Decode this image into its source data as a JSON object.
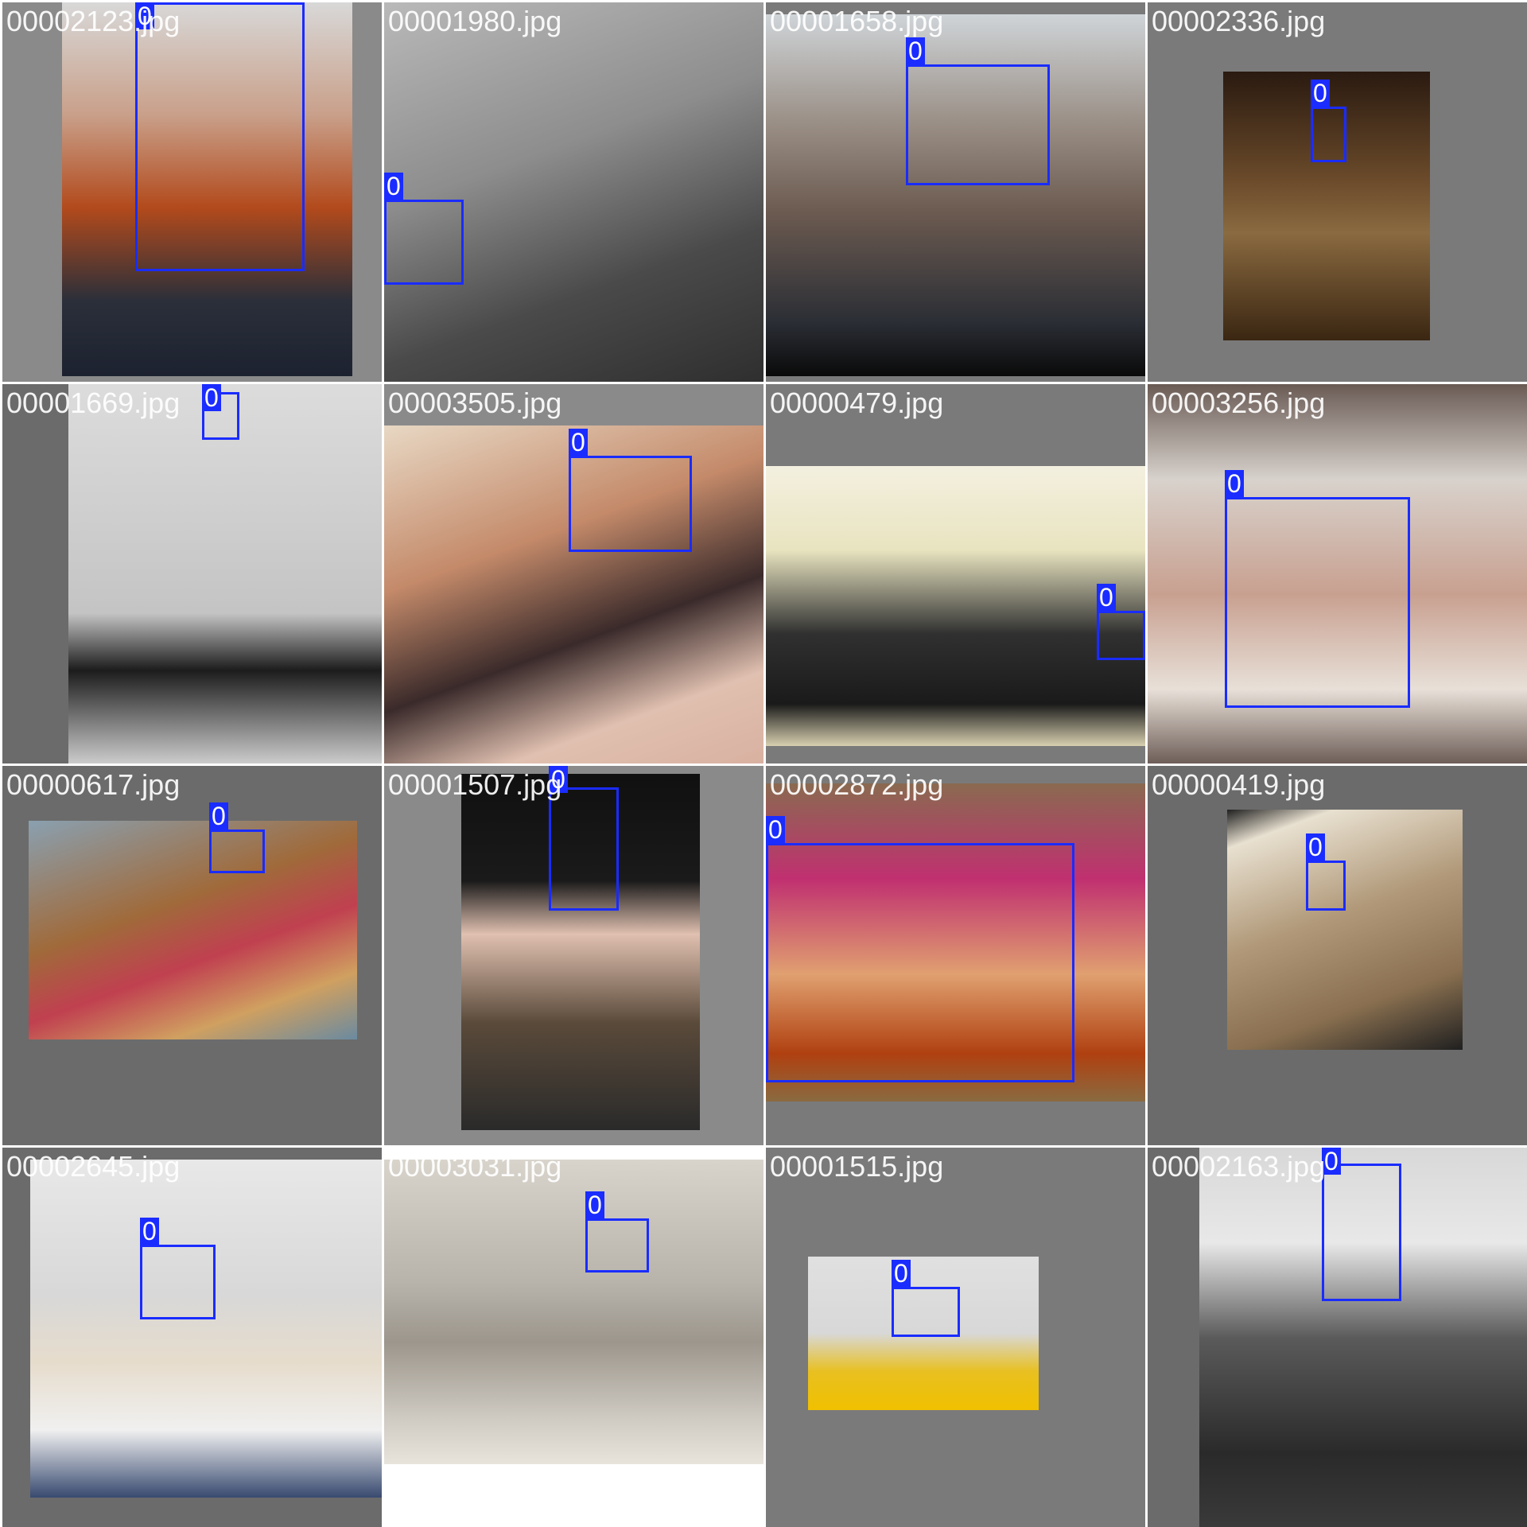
{
  "grid": {
    "tiles": [
      {
        "filename": "00002123.jpg",
        "class_label": "0"
      },
      {
        "filename": "00001980.jpg",
        "class_label": "0"
      },
      {
        "filename": "00001658.jpg",
        "class_label": "0"
      },
      {
        "filename": "00002336.jpg",
        "class_label": "0"
      },
      {
        "filename": "00001669.jpg",
        "class_label": "0"
      },
      {
        "filename": "00003505.jpg",
        "class_label": "0"
      },
      {
        "filename": "00000479.jpg",
        "class_label": "0"
      },
      {
        "filename": "00003256.jpg",
        "class_label": "0"
      },
      {
        "filename": "00000617.jpg",
        "class_label": "0"
      },
      {
        "filename": "00001507.jpg",
        "class_label": "0"
      },
      {
        "filename": "00002872.jpg",
        "class_label": "0"
      },
      {
        "filename": "00000419.jpg",
        "class_label": "0"
      },
      {
        "filename": "00002645.jpg",
        "class_label": "0"
      },
      {
        "filename": "00003031.jpg",
        "class_label": "0"
      },
      {
        "filename": "00001515.jpg",
        "class_label": "0"
      },
      {
        "filename": "00002163.jpg",
        "class_label": "0"
      }
    ]
  },
  "colors": {
    "box": "#1a2cff",
    "padding_gray": "#7f7f7f"
  }
}
